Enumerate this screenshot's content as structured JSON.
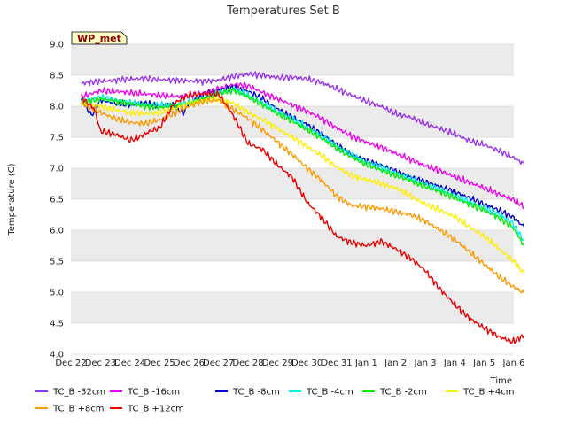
{
  "chart_data": {
    "type": "line",
    "title": "Temperatures Set B",
    "xlabel": "Time",
    "ylabel": "Temperature (C)",
    "ylim": [
      4.0,
      9.0
    ],
    "yticks": [
      "4.0",
      "4.5",
      "5.0",
      "5.5",
      "6.0",
      "6.5",
      "7.0",
      "7.5",
      "8.0",
      "8.5",
      "9.0"
    ],
    "xlim": [
      0,
      15
    ],
    "xticks": [
      "Dec 22",
      "Dec 23",
      "Dec 24",
      "Dec 25",
      "Dec 26",
      "Dec 27",
      "Dec 28",
      "Dec 29",
      "Dec 30",
      "Dec 31",
      "Jan 1",
      "Jan 2",
      "Jan 3",
      "Jan 4",
      "Jan 5",
      "Jan 6"
    ],
    "site_label": "WP_met",
    "legend_rows": [
      [
        "TC_B -32cm",
        "TC_B -16cm",
        "TC_B -8cm",
        "TC_B -4cm",
        "TC_B -2cm",
        "TC_B +4cm"
      ],
      [
        "TC_B +8cm",
        "TC_B +12cm"
      ]
    ],
    "series": [
      {
        "name": "TC_B -32cm",
        "color": "#9933ee",
        "x": [
          0.35,
          1,
          1.5,
          2,
          2.5,
          3,
          3.5,
          4,
          4.5,
          5,
          5.5,
          6,
          6.5,
          7,
          7.5,
          8,
          8.5,
          9,
          9.5,
          10,
          10.5,
          11,
          11.5,
          12,
          12.5,
          13,
          13.5,
          14,
          14.5,
          14.95,
          15.35
        ],
        "y": [
          8.37,
          8.4,
          8.42,
          8.44,
          8.45,
          8.43,
          8.42,
          8.41,
          8.4,
          8.42,
          8.48,
          8.52,
          8.5,
          8.46,
          8.47,
          8.44,
          8.38,
          8.28,
          8.18,
          8.08,
          8.0,
          7.88,
          7.82,
          7.72,
          7.64,
          7.55,
          7.44,
          7.38,
          7.28,
          7.18,
          7.07
        ]
      },
      {
        "name": "TC_B -16cm",
        "color": "#ee00ee",
        "x": [
          0.35,
          1,
          1.5,
          2,
          2.5,
          3,
          3.5,
          4,
          4.5,
          5,
          5.5,
          6,
          6.5,
          7,
          7.5,
          8,
          8.5,
          9,
          9.5,
          10,
          10.5,
          11,
          11.5,
          12,
          12.5,
          13,
          13.5,
          14,
          14.5,
          14.95,
          15.35
        ],
        "y": [
          8.15,
          8.25,
          8.24,
          8.22,
          8.2,
          8.18,
          8.16,
          8.17,
          8.22,
          8.28,
          8.35,
          8.33,
          8.22,
          8.12,
          8.02,
          7.92,
          7.8,
          7.65,
          7.52,
          7.42,
          7.34,
          7.24,
          7.14,
          7.04,
          6.96,
          6.86,
          6.77,
          6.68,
          6.58,
          6.5,
          6.38
        ]
      },
      {
        "name": "TC_B -8cm",
        "color": "#0000cc",
        "x": [
          0.35,
          0.7,
          1,
          1.5,
          2,
          2.5,
          3,
          3.5,
          3.8,
          4,
          4.5,
          5,
          5.5,
          6,
          6.5,
          7,
          7.5,
          8,
          8.5,
          9,
          9.5,
          10,
          10.5,
          11,
          11.5,
          12,
          12.5,
          13,
          13.5,
          14,
          14.5,
          14.95,
          15.35
        ],
        "y": [
          8.1,
          7.85,
          8.1,
          8.05,
          8.02,
          8.05,
          8.0,
          8.02,
          7.88,
          8.05,
          8.18,
          8.26,
          8.3,
          8.24,
          8.12,
          7.95,
          7.82,
          7.7,
          7.55,
          7.38,
          7.22,
          7.12,
          7.05,
          6.95,
          6.86,
          6.78,
          6.7,
          6.62,
          6.52,
          6.42,
          6.32,
          6.22,
          6.05
        ]
      },
      {
        "name": "TC_B -4cm",
        "color": "#00eeee",
        "x": [
          0.35,
          1,
          1.5,
          2,
          2.5,
          3,
          3.5,
          4,
          4.5,
          5,
          5.5,
          6,
          6.5,
          7,
          7.5,
          8,
          8.5,
          9,
          9.5,
          10,
          10.5,
          11,
          11.5,
          12,
          12.5,
          13,
          13.5,
          14,
          14.5,
          14.95,
          15.35
        ],
        "y": [
          8.08,
          8.15,
          8.1,
          8.06,
          8.03,
          8.02,
          8.03,
          8.06,
          8.14,
          8.22,
          8.28,
          8.18,
          8.05,
          7.92,
          7.8,
          7.66,
          7.52,
          7.36,
          7.22,
          7.1,
          7.02,
          6.92,
          6.84,
          6.74,
          6.66,
          6.56,
          6.46,
          6.36,
          6.26,
          6.12,
          5.82
        ]
      },
      {
        "name": "TC_B -2cm",
        "color": "#00ee00",
        "x": [
          0.35,
          1,
          1.5,
          2,
          2.5,
          3,
          3.5,
          4,
          4.5,
          5,
          5.5,
          6,
          6.5,
          7,
          7.5,
          8,
          8.5,
          9,
          9.5,
          10,
          10.5,
          11,
          11.5,
          12,
          12.5,
          13,
          13.5,
          14,
          14.5,
          14.95,
          15.35
        ],
        "y": [
          8.05,
          8.12,
          8.08,
          8.04,
          8.0,
          7.98,
          8.0,
          8.04,
          8.12,
          8.2,
          8.26,
          8.15,
          8.02,
          7.88,
          7.76,
          7.62,
          7.48,
          7.32,
          7.18,
          7.06,
          6.97,
          6.88,
          6.8,
          6.7,
          6.62,
          6.52,
          6.42,
          6.32,
          6.2,
          6.05,
          5.75
        ]
      },
      {
        "name": "TC_B +4cm",
        "color": "#ffee00",
        "x": [
          0.35,
          1,
          1.5,
          2,
          2.5,
          3,
          3.5,
          4,
          4.5,
          5,
          5.5,
          6,
          6.5,
          7,
          7.5,
          8,
          8.5,
          9,
          9.5,
          10,
          10.5,
          11,
          11.5,
          12,
          12.5,
          13,
          13.5,
          14,
          14.5,
          14.95,
          15.35
        ],
        "y": [
          8.05,
          8.0,
          7.94,
          7.9,
          7.88,
          7.9,
          7.96,
          8.05,
          8.1,
          8.12,
          8.05,
          7.9,
          7.78,
          7.64,
          7.5,
          7.35,
          7.2,
          7.02,
          6.88,
          6.82,
          6.75,
          6.68,
          6.55,
          6.42,
          6.32,
          6.22,
          6.05,
          5.9,
          5.7,
          5.52,
          5.3
        ]
      },
      {
        "name": "TC_B +8cm",
        "color": "#ff9900",
        "x": [
          0.35,
          1,
          1.5,
          2,
          2.5,
          3,
          3.5,
          4,
          4.5,
          5,
          5.5,
          6,
          6.5,
          7,
          7.5,
          8,
          8.5,
          9,
          9.5,
          10,
          10.5,
          11,
          11.5,
          12,
          12.5,
          13,
          13.5,
          14,
          14.5,
          14.95,
          15.35
        ],
        "y": [
          8.05,
          7.9,
          7.8,
          7.74,
          7.72,
          7.78,
          7.88,
          8.0,
          8.08,
          8.1,
          7.95,
          7.8,
          7.62,
          7.42,
          7.22,
          7.0,
          6.8,
          6.55,
          6.4,
          6.38,
          6.35,
          6.3,
          6.25,
          6.15,
          6.0,
          5.85,
          5.65,
          5.45,
          5.25,
          5.1,
          4.98
        ]
      },
      {
        "name": "TC_B +12cm",
        "color": "#ee0000",
        "x": [
          0.35,
          0.8,
          1,
          1.5,
          2,
          2.3,
          2.7,
          3,
          3.5,
          4,
          4.5,
          5,
          5.5,
          6,
          6.5,
          7,
          7.5,
          8,
          8.5,
          9,
          9.5,
          10,
          10.5,
          11,
          11.5,
          12,
          12.5,
          13,
          13.5,
          14,
          14.5,
          14.95,
          15.35
        ],
        "y": [
          8.15,
          7.95,
          7.6,
          7.55,
          7.45,
          7.5,
          7.6,
          7.65,
          8.05,
          8.18,
          8.2,
          8.2,
          7.85,
          7.4,
          7.3,
          7.05,
          6.85,
          6.45,
          6.2,
          5.9,
          5.8,
          5.75,
          5.82,
          5.7,
          5.55,
          5.35,
          5.05,
          4.8,
          4.58,
          4.42,
          4.28,
          4.2,
          4.3
        ]
      }
    ]
  }
}
